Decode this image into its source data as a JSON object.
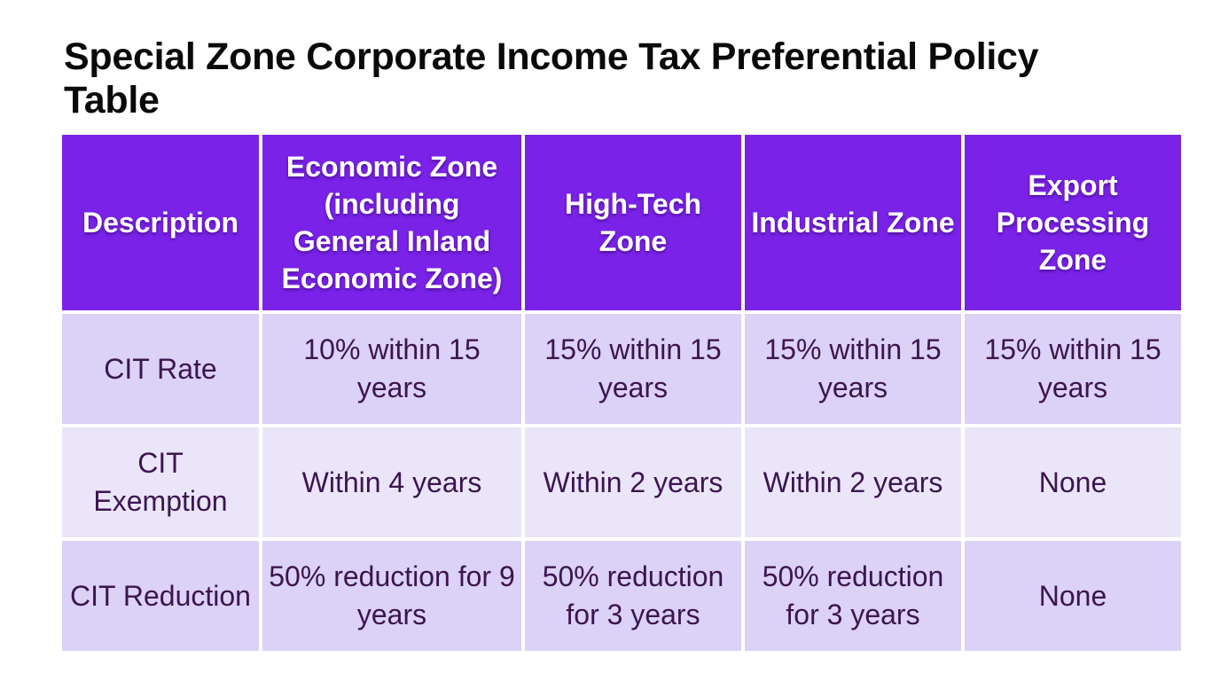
{
  "title": "Special Zone Corporate Income Tax Preferential Policy Table",
  "table": {
    "headers": [
      "Description",
      "Economic Zone (including General Inland Economic Zone)",
      "High-Tech Zone",
      "Industrial Zone",
      "Export Processing Zone"
    ],
    "rows": [
      [
        "CIT Rate",
        "10% within 15 years",
        "15% within 15 years",
        "15% within 15 years",
        "15% within 15 years"
      ],
      [
        "CIT Exemption",
        "Within 4 years",
        "Within 2 years",
        "Within 2 years",
        "None"
      ],
      [
        "CIT Reduction",
        "50% reduction for 9 years",
        "50% reduction for 3 years",
        "50% reduction for 3 years",
        "None"
      ]
    ]
  },
  "colors": {
    "header_bg": "#7a22e8",
    "header_text": "#ffffff",
    "row_odd_bg": "#dcd1f6",
    "row_even_bg": "#ebe5f9",
    "cell_text": "#3b1550"
  }
}
